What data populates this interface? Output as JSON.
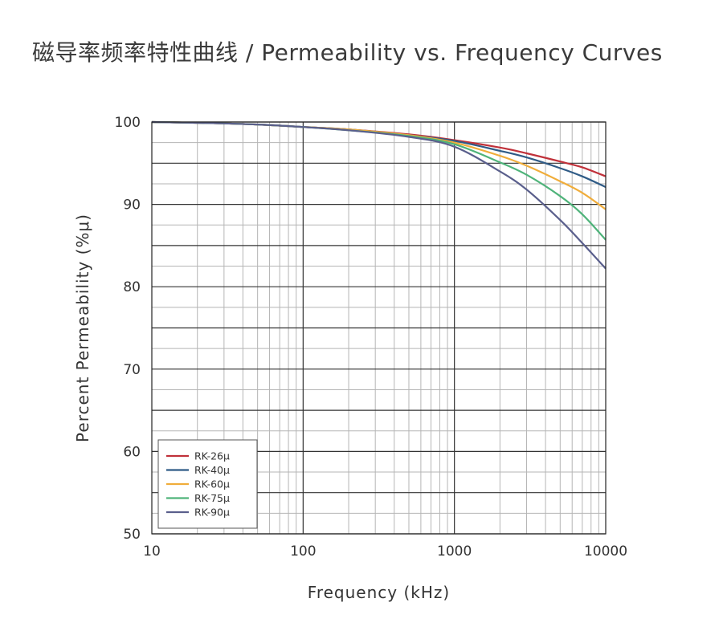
{
  "title": "磁导率频率特性曲线 / Permeability vs. Frequency Curves",
  "chart_data": {
    "type": "line",
    "x_scale": "log",
    "xlim": [
      10,
      10000
    ],
    "ylim": [
      50,
      100
    ],
    "xlabel": "Frequency (kHz)",
    "ylabel": "Percent Permeability (%μ)",
    "x_ticks": [
      "10",
      "100",
      "1000",
      "10000"
    ],
    "y_ticks": [
      "100",
      "90",
      "80",
      "70",
      "60",
      "50"
    ],
    "grid": true,
    "legend_position": "bottom-left",
    "x": [
      10,
      20,
      50,
      100,
      200,
      500,
      1000,
      2000,
      3000,
      5000,
      7000,
      10000
    ],
    "series": [
      {
        "name": "RK-26μ",
        "color": "#c0313a",
        "values": [
          100.0,
          99.9,
          99.7,
          99.4,
          99.1,
          98.5,
          97.8,
          96.9,
          96.2,
          95.2,
          94.5,
          93.4
        ]
      },
      {
        "name": "RK-40μ",
        "color": "#2f5b86",
        "values": [
          100.0,
          99.9,
          99.7,
          99.4,
          99.1,
          98.4,
          97.7,
          96.5,
          95.7,
          94.4,
          93.4,
          92.1
        ]
      },
      {
        "name": "RK-60μ",
        "color": "#f0ad3b",
        "values": [
          100.0,
          99.9,
          99.7,
          99.4,
          99.1,
          98.4,
          97.5,
          95.9,
          94.7,
          92.8,
          91.4,
          89.4
        ]
      },
      {
        "name": "RK-75μ",
        "color": "#4fb37a",
        "values": [
          100.0,
          99.9,
          99.7,
          99.4,
          99.0,
          98.3,
          97.3,
          95.1,
          93.6,
          91.0,
          88.8,
          85.7
        ]
      },
      {
        "name": "RK-90μ",
        "color": "#5a5f8c",
        "values": [
          100.0,
          99.9,
          99.7,
          99.4,
          99.0,
          98.2,
          97.0,
          94.0,
          91.8,
          88.1,
          85.3,
          82.2
        ]
      }
    ]
  }
}
